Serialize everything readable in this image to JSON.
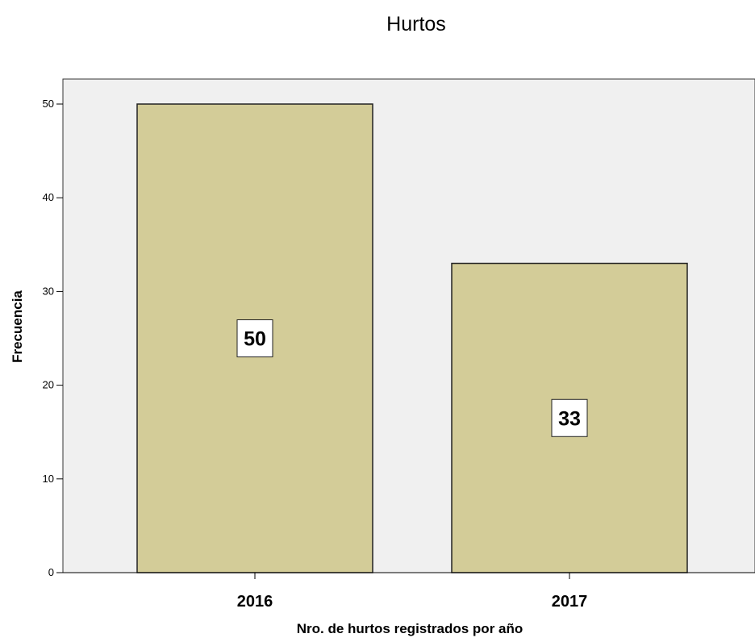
{
  "chart_data": {
    "type": "bar",
    "title": "Hurtos",
    "xlabel": "Nro. de hurtos registrados por año",
    "ylabel": "Frecuencia",
    "categories": [
      "2016",
      "2017"
    ],
    "values": [
      50,
      33
    ],
    "data_labels": [
      "50",
      "33"
    ],
    "ylim": [
      0,
      50
    ],
    "yticks": [
      "0",
      "10",
      "20",
      "30",
      "40",
      "50"
    ],
    "grid": false,
    "legend": "none",
    "colors": {
      "bar": "#d3cc98",
      "bar_stroke": "#222222",
      "plot_background": "#f0f0f0",
      "label_box": "#ffffff"
    }
  }
}
